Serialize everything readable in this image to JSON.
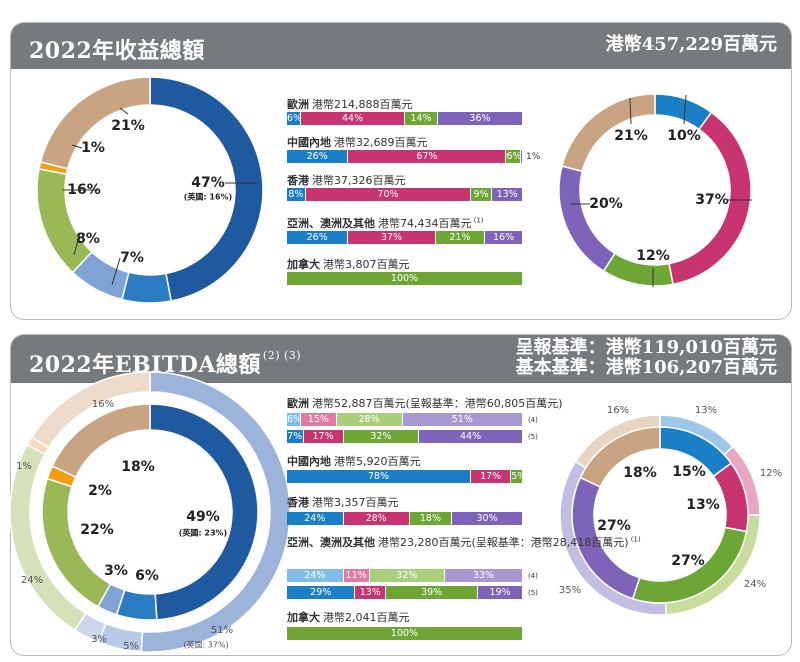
{
  "colors": {
    "europe": "#1f5aa0",
    "hk_dark": "#2b7cc2",
    "hk_light": "#7fa3d4",
    "olive": "#99b856",
    "orange": "#f39c12",
    "tan": "#c9a482",
    "blue": "#1b7fc8",
    "magenta": "#c7346f",
    "green": "#6ea635",
    "purple": "#7d64b8",
    "header_bg": "#757a7e"
  },
  "panel1": {
    "title": "2022年收益總額",
    "total": "港幣457,229百萬元",
    "regions": [
      {
        "name": "歐洲",
        "value": "港幣214,888百萬元",
        "note": ""
      },
      {
        "name": "中國內地",
        "value": "港幣32,689百萬元",
        "note": ""
      },
      {
        "name": "香港",
        "value": "港幣37,326百萬元",
        "note": ""
      },
      {
        "name": "亞洲、澳洲及其他",
        "value": "港幣74,434百萬元",
        "note": "(1)"
      },
      {
        "name": "加拿大",
        "value": "港幣3,807百萬元",
        "note": ""
      }
    ],
    "bar_outside_label": "1%"
  },
  "panel2": {
    "title": "2022年EBITDA總額",
    "title_note": "(2) (3)",
    "total_line1": "呈報基準：港幣119,010百萬元",
    "total_line2": "基本基準：港幣106,207百萬元",
    "regions": [
      {
        "name": "歐洲",
        "value": "港幣52,887百萬元(呈報基準：港幣60,805百萬元)",
        "note": ""
      },
      {
        "name": "中國內地",
        "value": "港幣5,920百萬元",
        "note": ""
      },
      {
        "name": "香港",
        "value": "港幣3,357百萬元",
        "note": ""
      },
      {
        "name": "亞洲、澳洲及其他",
        "value": "港幣23,280百萬元(呈報基準：港幣28,418百萬元)",
        "note": "(1)"
      },
      {
        "name": "加拿大",
        "value": "港幣2,041百萬元",
        "note": ""
      }
    ],
    "bar_notes": [
      "(4)",
      "(5)"
    ]
  },
  "chart_data": [
    {
      "type": "pie",
      "title": "2022年收益總額 — 按地區",
      "categories": [
        "歐洲",
        "加拿大",
        "香港",
        "中國內地",
        "亞洲、澳洲及其他",
        "其他"
      ],
      "values": [
        47,
        7,
        8,
        16,
        1,
        21
      ],
      "annotations": [
        "(英國: 16%)"
      ]
    },
    {
      "type": "bar",
      "title": "2022年收益總額 — 各地區按業務",
      "categories": [
        "歐洲",
        "中國內地",
        "香港",
        "亞洲、澳洲及其他",
        "加拿大"
      ],
      "series": [
        {
          "values": [
            6,
            26,
            8,
            26,
            0
          ]
        },
        {
          "values": [
            44,
            67,
            70,
            37,
            0
          ]
        },
        {
          "values": [
            14,
            6,
            9,
            21,
            100
          ]
        },
        {
          "values": [
            36,
            1,
            13,
            16,
            0
          ]
        }
      ]
    },
    {
      "type": "pie",
      "title": "2022年收益總額 — 按業務",
      "values": [
        10,
        37,
        12,
        20,
        21
      ]
    },
    {
      "type": "pie",
      "title": "2022年EBITDA總額 — 按地區（內環：基本基準；外環：呈報基準）",
      "categories": [
        "歐洲",
        "加拿大",
        "香港",
        "中國內地",
        "亞洲、澳洲及其他",
        "其他"
      ],
      "series": [
        {
          "name": "inner",
          "values": [
            49,
            6,
            3,
            22,
            2,
            18
          ]
        },
        {
          "name": "outer",
          "values": [
            51,
            5,
            3,
            24,
            1,
            16
          ]
        }
      ],
      "annotations": [
        "(英國: 23%)",
        "(英國: 37%)"
      ]
    },
    {
      "type": "bar",
      "title": "2022年EBITDA總額 — 各地區按業務",
      "rows": [
        {
          "region": "歐洲",
          "basis": "(4)",
          "values": [
            6,
            15,
            28,
            51
          ]
        },
        {
          "region": "歐洲",
          "basis": "(5)",
          "values": [
            7,
            17,
            32,
            44
          ]
        },
        {
          "region": "中國內地",
          "values": [
            78,
            17,
            5,
            0
          ]
        },
        {
          "region": "香港",
          "values": [
            24,
            28,
            18,
            30
          ]
        },
        {
          "region": "亞洲、澳洲及其他",
          "basis": "(4)",
          "values": [
            24,
            11,
            32,
            33
          ]
        },
        {
          "region": "亞洲、澳洲及其他",
          "basis": "(5)",
          "values": [
            29,
            13,
            39,
            19
          ]
        },
        {
          "region": "加拿大",
          "values": [
            0,
            0,
            100,
            0
          ]
        }
      ]
    },
    {
      "type": "pie",
      "title": "2022年EBITDA總額 — 按業務（內環/外環）",
      "series": [
        {
          "name": "inner",
          "values": [
            15,
            13,
            27,
            27,
            18
          ]
        },
        {
          "name": "outer",
          "values": [
            13,
            12,
            24,
            35,
            16
          ]
        }
      ]
    }
  ]
}
